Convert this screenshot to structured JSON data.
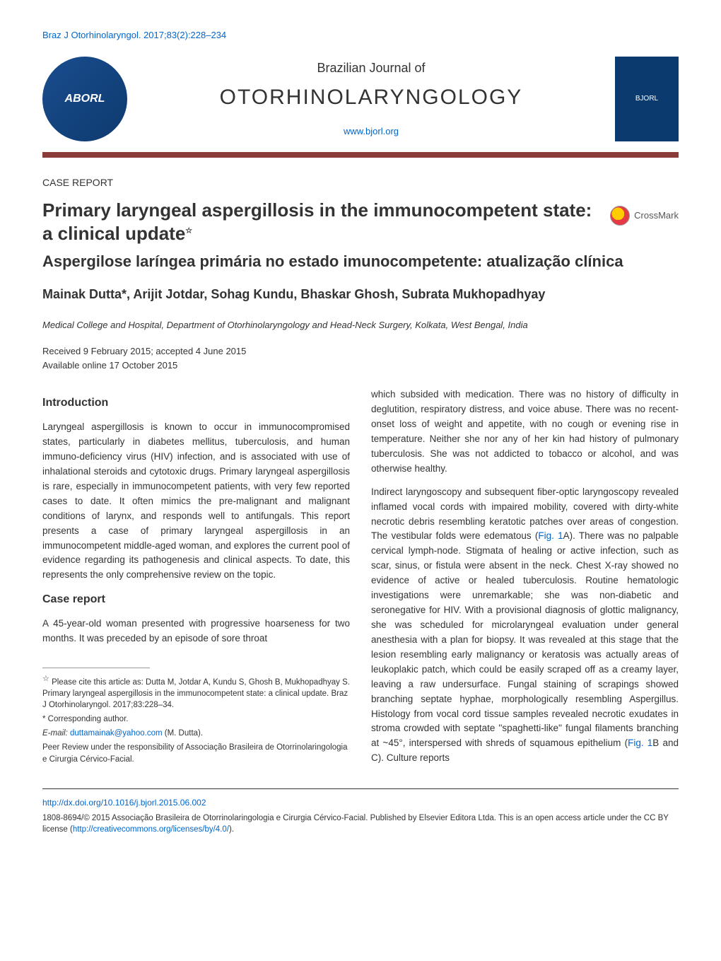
{
  "header": {
    "citation": "Braz J Otorhinolaryngol. 2017;83(2):228–234",
    "logo_text": "ABORL",
    "journal_subtitle": "Brazilian Journal of",
    "journal_name": "OTORHINOLARYNGOLOGY",
    "journal_url": "www.bjorl.org",
    "cover_label": "BJORL"
  },
  "divider_color": "#8b3a3a",
  "article": {
    "section_label": "CASE REPORT",
    "title": "Primary laryngeal aspergillosis in the immunocompetent state: a clinical update",
    "star": "☆",
    "subtitle": "Aspergilose laríngea primária no estado imunocompetente: atualização clínica",
    "authors_line": "Mainak Dutta*, Arijit Jotdar, Sohag Kundu, Bhaskar Ghosh, Subrata Mukhopadhyay",
    "affiliation": "Medical College and Hospital, Department of Otorhinolaryngology and Head-Neck Surgery, Kolkata, West Bengal, India",
    "dates_line1": "Received 9 February 2015; accepted 4 June 2015",
    "dates_line2": "Available online 17 October 2015"
  },
  "crossmark": {
    "label": "CrossMark"
  },
  "sections": {
    "intro_heading": "Introduction",
    "intro_p1": "Laryngeal aspergillosis is known to occur in immunocompromised states, particularly in diabetes mellitus, tuberculosis, and human immuno-deficiency virus (HIV) infection, and is associated with use of inhalational steroids and cytotoxic drugs. Primary laryngeal aspergillosis is rare, especially in immunocompetent patients, with very few reported cases to date. It often mimics the pre-malignant and malignant conditions of larynx, and responds well to antifungals. This report presents a case of primary laryngeal aspergillosis in an immunocompetent middle-aged woman, and explores the current pool of evidence regarding its pathogenesis and clinical aspects. To date, this represents the only comprehensive review on the topic.",
    "case_heading": "Case report",
    "case_p1": "A 45-year-old woman presented with progressive hoarseness for two months. It was preceded by an episode of sore throat",
    "right_p1": "which subsided with medication. There was no history of difficulty in deglutition, respiratory distress, and voice abuse. There was no recent-onset loss of weight and appetite, with no cough or evening rise in temperature. Neither she nor any of her kin had history of pulmonary tuberculosis. She was not addicted to tobacco or alcohol, and was otherwise healthy.",
    "right_p2a": "Indirect laryngoscopy and subsequent fiber-optic laryngoscopy revealed inflamed vocal cords with impaired mobility, covered with dirty-white necrotic debris resembling keratotic patches over areas of congestion. The vestibular folds were edematous (",
    "right_p2_fig1": "Fig. 1",
    "right_p2b": "A). There was no palpable cervical lymph-node. Stigmata of healing or active infection, such as scar, sinus, or fistula were absent in the neck. Chest X-ray showed no evidence of active or healed tuberculosis. Routine hematologic investigations were unremarkable; she was non-diabetic and seronegative for HIV. With a provisional diagnosis of glottic malignancy, she was scheduled for microlaryngeal evaluation under general anesthesia with a plan for biopsy. It was revealed at this stage that the lesion resembling early malignancy or keratosis was actually areas of leukoplakic patch, which could be easily scraped off as a creamy layer, leaving a raw undersurface. Fungal staining of scrapings showed branching septate hyphae, morphologically resembling Aspergillus. Histology from vocal cord tissue samples revealed necrotic exudates in stroma crowded with septate ''spaghetti-like'' fungal filaments branching at ~45°, interspersed with shreds of squamous epithelium (",
    "right_p2_fig2": "Fig. 1",
    "right_p2c": "B and C). Culture reports"
  },
  "footnotes": {
    "cite_star": "☆",
    "cite_text": " Please cite this article as: Dutta M, Jotdar A, Kundu S, Ghosh B, Mukhopadhyay S. Primary laryngeal aspergillosis in the immunocompetent state: a clinical update. Braz J Otorhinolaryngol. 2017;83:228–34.",
    "corr_label": "* Corresponding author.",
    "email_label": "E-mail: ",
    "email": "duttamainak@yahoo.com",
    "email_suffix": " (M. Dutta).",
    "peer_review": "Peer Review under the responsibility of Associação Brasileira de Otorrinolaringologia e Cirurgia Cérvico-Facial."
  },
  "footer": {
    "doi": "http://dx.doi.org/10.1016/j.bjorl.2015.06.002",
    "issn_copyright": "1808-8694/© 2015 Associação Brasileira de Otorrinolaringologia e Cirurgia Cérvico-Facial. Published by Elsevier Editora Ltda. This is an open access article under the CC BY license (",
    "cc_url": "http://creativecommons.org/licenses/by/4.0/",
    "cc_suffix": ")."
  }
}
